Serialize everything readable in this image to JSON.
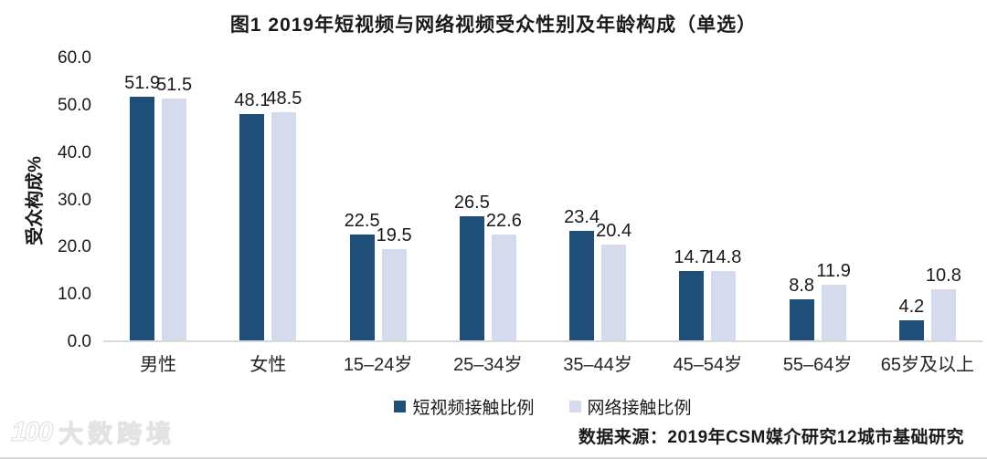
{
  "chart_data": {
    "type": "bar",
    "title": "图1  2019年短视频与网络视频受众性别及年龄构成（单选）",
    "ylabel": "受众构成%",
    "xlabel": "",
    "categories": [
      "男性",
      "女性",
      "15–24岁",
      "25–34岁",
      "35–44岁",
      "45–54岁",
      "55–64岁",
      "65岁及以上"
    ],
    "series": [
      {
        "name": "短视频接触比例",
        "color": "#1f4e79",
        "values": [
          51.9,
          48.1,
          22.5,
          26.5,
          23.4,
          14.7,
          8.8,
          4.2
        ]
      },
      {
        "name": "网络接触比例",
        "color": "#d5dbec",
        "values": [
          51.5,
          48.5,
          19.5,
          22.6,
          20.4,
          14.8,
          11.9,
          10.8
        ]
      }
    ],
    "ylim": [
      0,
      60
    ],
    "ytick_step": 10,
    "ytick_labels": [
      "0.0",
      "10.0",
      "20.0",
      "30.0",
      "40.0",
      "50.0",
      "60.0"
    ],
    "grid": false,
    "legend_position": "bottom",
    "value_labels_shown": true
  },
  "colors": {
    "series_dark": "#1f4e79",
    "series_light": "#d5dbec",
    "axis_line": "#d9d9d9",
    "text": "#1a1a1a",
    "watermark": "#e3e3e3"
  },
  "source_note": "数据来源：2019年CSM媒介研究12城市基础研究",
  "watermark": {
    "logo": "100",
    "text": "大数跨境"
  }
}
